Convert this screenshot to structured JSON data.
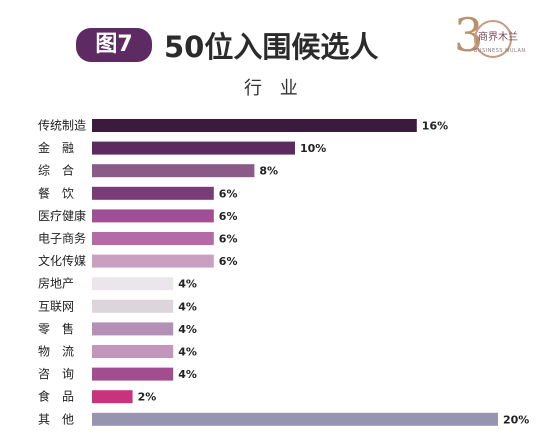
{
  "header": {
    "badge": "图7",
    "title": "50位入围候选人",
    "subtitle": "行 业"
  },
  "logo": {
    "number": "3",
    "name": "商界木兰",
    "tagline": "BUSINESS MULAN"
  },
  "chart_data": {
    "type": "bar",
    "orientation": "horizontal",
    "title": "行 业",
    "categories": [
      "传统制造",
      "金　融",
      "综　合",
      "餐　饮",
      "医疗健康",
      "电子商务",
      "文化传媒",
      "房地产",
      "互联网",
      "零　售",
      "物　流",
      "咨　询",
      "食　品",
      "其　他"
    ],
    "values": [
      16,
      10,
      8,
      6,
      6,
      6,
      6,
      4,
      4,
      4,
      4,
      4,
      2,
      20
    ],
    "value_labels": [
      "16%",
      "10%",
      "8%",
      "6%",
      "6%",
      "6%",
      "6%",
      "4%",
      "4%",
      "4%",
      "4%",
      "4%",
      "2%",
      "20%"
    ],
    "colors": [
      "#3b1a3d",
      "#5c2a5e",
      "#8a5a89",
      "#7a3c78",
      "#a04f97",
      "#b46aa6",
      "#c9a0bf",
      "#ebe6eb",
      "#dcd6dc",
      "#b48fb6",
      "#c195bc",
      "#a24d8e",
      "#c7347e",
      "#9794b1"
    ],
    "unit": "%",
    "xlabel": "",
    "ylabel": "",
    "grid": false,
    "legend": "none"
  }
}
